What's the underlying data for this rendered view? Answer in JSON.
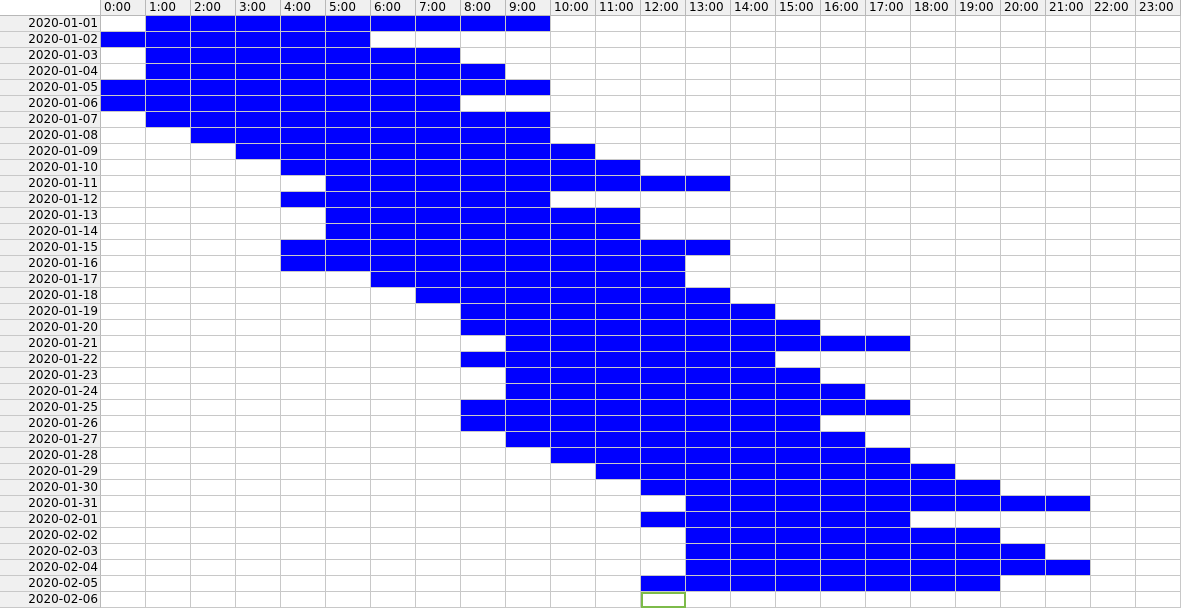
{
  "sheet": {
    "hours": [
      "0:00",
      "1:00",
      "2:00",
      "3:00",
      "4:00",
      "5:00",
      "6:00",
      "7:00",
      "8:00",
      "9:00",
      "10:00",
      "11:00",
      "12:00",
      "13:00",
      "14:00",
      "15:00",
      "16:00",
      "17:00",
      "18:00",
      "19:00",
      "20:00",
      "21:00",
      "22:00",
      "23:00"
    ],
    "dates": [
      "2020-01-01",
      "2020-01-02",
      "2020-01-03",
      "2020-01-04",
      "2020-01-05",
      "2020-01-06",
      "2020-01-07",
      "2020-01-08",
      "2020-01-09",
      "2020-01-10",
      "2020-01-11",
      "2020-01-12",
      "2020-01-13",
      "2020-01-14",
      "2020-01-15",
      "2020-01-16",
      "2020-01-17",
      "2020-01-18",
      "2020-01-19",
      "2020-01-20",
      "2020-01-21",
      "2020-01-22",
      "2020-01-23",
      "2020-01-24",
      "2020-01-25",
      "2020-01-26",
      "2020-01-27",
      "2020-01-28",
      "2020-01-29",
      "2020-01-30",
      "2020-01-31",
      "2020-02-01",
      "2020-02-02",
      "2020-02-03",
      "2020-02-04",
      "2020-02-05",
      "2020-02-06"
    ],
    "filled_hour_ranges": [
      [
        [
          1,
          9
        ]
      ],
      [
        [
          0,
          5
        ]
      ],
      [
        [
          1,
          7
        ]
      ],
      [
        [
          1,
          8
        ]
      ],
      [
        [
          0,
          9
        ]
      ],
      [
        [
          0,
          7
        ]
      ],
      [
        [
          1,
          9
        ]
      ],
      [
        [
          2,
          9
        ]
      ],
      [
        [
          3,
          10
        ]
      ],
      [
        [
          4,
          11
        ]
      ],
      [
        [
          5,
          13
        ]
      ],
      [
        [
          4,
          9
        ]
      ],
      [
        [
          5,
          11
        ]
      ],
      [
        [
          5,
          11
        ]
      ],
      [
        [
          4,
          13
        ]
      ],
      [
        [
          4,
          12
        ]
      ],
      [
        [
          6,
          12
        ]
      ],
      [
        [
          7,
          13
        ]
      ],
      [
        [
          8,
          14
        ]
      ],
      [
        [
          8,
          15
        ]
      ],
      [
        [
          9,
          17
        ]
      ],
      [
        [
          8,
          14
        ]
      ],
      [
        [
          9,
          15
        ]
      ],
      [
        [
          9,
          16
        ]
      ],
      [
        [
          8,
          17
        ]
      ],
      [
        [
          8,
          15
        ]
      ],
      [
        [
          9,
          16
        ]
      ],
      [
        [
          10,
          17
        ]
      ],
      [
        [
          11,
          18
        ]
      ],
      [
        [
          12,
          19
        ]
      ],
      [
        [
          13,
          21
        ]
      ],
      [
        [
          12,
          17
        ]
      ],
      [
        [
          13,
          19
        ]
      ],
      [
        [
          13,
          20
        ]
      ],
      [
        [
          13,
          21
        ]
      ],
      [
        [
          12,
          19
        ]
      ],
      []
    ],
    "selected_cell": {
      "row": 36,
      "col": 12
    },
    "fill_color": "#0000ff",
    "selection_color": "#7dbb4a"
  }
}
